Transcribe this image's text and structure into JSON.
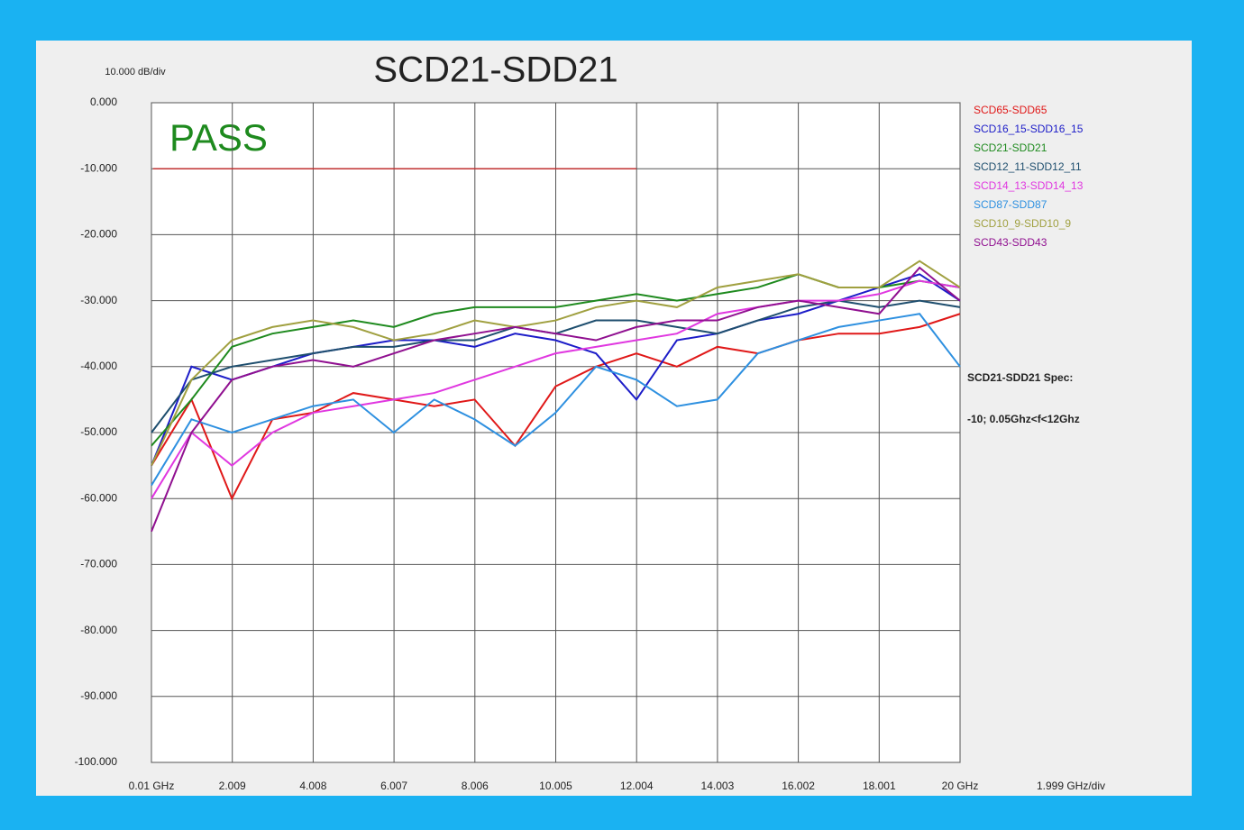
{
  "chart_data": {
    "type": "line",
    "title": "SCD21-SDD21",
    "y_scale_label": "10.000 dB/div",
    "x_scale_label": "1.999 GHz/div",
    "status": "PASS",
    "annotations": [
      "SCD21-SDD21 Spec:",
      "-10; 0.05Ghz<f<12Ghz"
    ],
    "limit": {
      "x": [
        0.05,
        12
      ],
      "value": -10,
      "color": "#c03030"
    },
    "x": [
      0.01,
      1,
      2,
      3,
      4,
      5,
      6,
      7,
      8,
      9,
      10,
      11,
      12,
      13,
      14,
      15,
      16,
      17,
      18,
      19,
      20
    ],
    "series": [
      {
        "name": "SCD65-SDD65",
        "color": "#e01818",
        "values": [
          -55,
          -45,
          -60,
          -48,
          -47,
          -44,
          -45,
          -46,
          -45,
          -52,
          -43,
          -40,
          -38,
          -40,
          -37,
          -38,
          -36,
          -35,
          -35,
          -34,
          -32
        ]
      },
      {
        "name": "SCD16_15-SDD16_15",
        "color": "#1c1cc8",
        "values": [
          -55,
          -40,
          -42,
          -40,
          -38,
          -37,
          -36,
          -36,
          -37,
          -35,
          -36,
          -38,
          -45,
          -36,
          -35,
          -33,
          -32,
          -30,
          -28,
          -26,
          -30
        ]
      },
      {
        "name": "SCD21-SDD21",
        "color": "#1e8a1e",
        "values": [
          -52,
          -45,
          -37,
          -35,
          -34,
          -33,
          -34,
          -32,
          -31,
          -31,
          -31,
          -30,
          -29,
          -30,
          -29,
          -28,
          -26,
          -28,
          -28,
          -27,
          -28
        ]
      },
      {
        "name": "SCD12_11-SDD12_11",
        "color": "#1e4e6e",
        "values": [
          -50,
          -42,
          -40,
          -39,
          -38,
          -37,
          -37,
          -36,
          -36,
          -34,
          -35,
          -33,
          -33,
          -34,
          -35,
          -33,
          -31,
          -30,
          -31,
          -30,
          -31
        ]
      },
      {
        "name": "SCD14_13-SDD14_13",
        "color": "#e038e0",
        "values": [
          -60,
          -50,
          -55,
          -50,
          -47,
          -46,
          -45,
          -44,
          -42,
          -40,
          -38,
          -37,
          -36,
          -35,
          -32,
          -31,
          -30,
          -30,
          -29,
          -27,
          -28
        ]
      },
      {
        "name": "SCD87-SDD87",
        "color": "#2e90e0",
        "values": [
          -58,
          -48,
          -50,
          -48,
          -46,
          -45,
          -50,
          -45,
          -48,
          -52,
          -47,
          -40,
          -42,
          -46,
          -45,
          -38,
          -36,
          -34,
          -33,
          -32,
          -40
        ]
      },
      {
        "name": "SCD10_9-SDD10_9",
        "color": "#a0a040",
        "values": [
          -55,
          -42,
          -36,
          -34,
          -33,
          -34,
          -36,
          -35,
          -33,
          -34,
          -33,
          -31,
          -30,
          -31,
          -28,
          -27,
          -26,
          -28,
          -28,
          -24,
          -28
        ]
      },
      {
        "name": "SCD43-SDD43",
        "color": "#901090",
        "values": [
          -65,
          -50,
          -42,
          -40,
          -39,
          -40,
          -38,
          -36,
          -35,
          -34,
          -35,
          -36,
          -34,
          -33,
          -33,
          -31,
          -30,
          -31,
          -32,
          -25,
          -30
        ]
      }
    ],
    "xlim": [
      0.01,
      20
    ],
    "ylim": [
      -100,
      0
    ],
    "xticks": [
      {
        "value": 0.01,
        "label": "0.01 GHz"
      },
      2.009,
      4.008,
      6.007,
      8.006,
      10.005,
      12.004,
      14.003,
      16.002,
      18.001,
      {
        "value": 20,
        "label": "20 GHz"
      }
    ],
    "yticks": [
      {
        "value": 0,
        "label": "0.000"
      },
      {
        "value": -10,
        "label": "-10.000"
      },
      {
        "value": -20,
        "label": "-20.000"
      },
      {
        "value": -30,
        "label": "-30.000"
      },
      {
        "value": -40,
        "label": "-40.000"
      },
      {
        "value": -50,
        "label": "-50.000"
      },
      {
        "value": -60,
        "label": "-60.000"
      },
      {
        "value": -70,
        "label": "-70.000"
      },
      {
        "value": -80,
        "label": "-80.000"
      },
      {
        "value": -90,
        "label": "-90.000"
      },
      {
        "value": -100,
        "label": "-100.000"
      }
    ],
    "grid": true
  }
}
